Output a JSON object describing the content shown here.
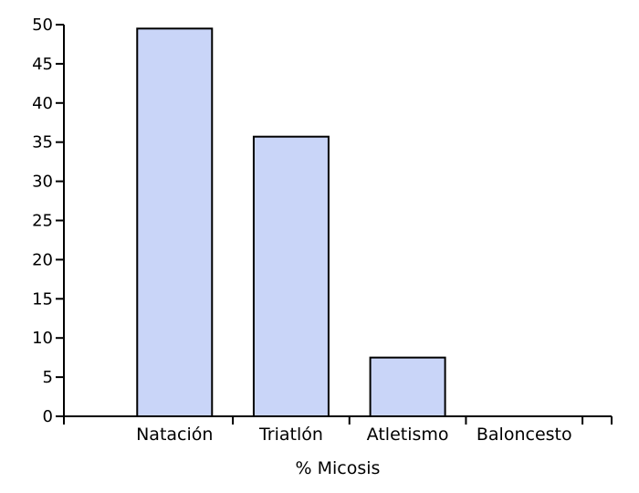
{
  "chart_data": {
    "type": "bar",
    "categories": [
      "Natación",
      "Triatlón",
      "Atletismo",
      "Baloncesto"
    ],
    "values": [
      49.5,
      35.7,
      7.5,
      0
    ],
    "title": "",
    "xlabel": "% Micosis",
    "ylabel": "",
    "ylim": [
      0,
      50
    ],
    "yticks": [
      0,
      5,
      10,
      15,
      20,
      25,
      30,
      35,
      40,
      45,
      50
    ],
    "grid": false,
    "legend": "none",
    "bar_color": "#c9d5f8",
    "bar_edge_color": "#000000"
  }
}
